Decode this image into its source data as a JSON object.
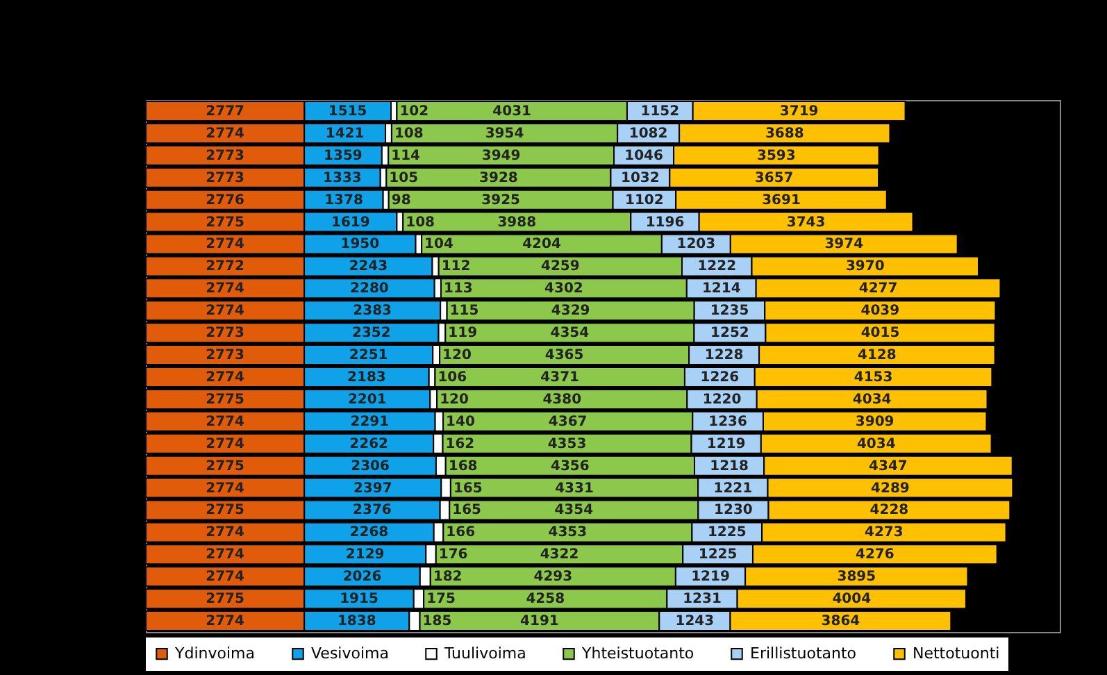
{
  "chart_data": {
    "type": "bar",
    "orientation": "horizontal",
    "stacked": true,
    "data_labels": true,
    "tick_labels": false,
    "legend": "bottom",
    "grid": false,
    "categories": [
      null,
      null,
      null,
      null,
      null,
      null,
      null,
      null,
      null,
      null,
      null,
      null,
      null,
      null,
      null,
      null,
      null,
      null,
      null,
      null,
      null,
      null,
      null,
      null
    ],
    "series": [
      {
        "name": "Ydinvoima",
        "color": "#e05c0a",
        "values": [
          2777,
          2774,
          2773,
          2773,
          2776,
          2775,
          2774,
          2772,
          2774,
          2774,
          2773,
          2773,
          2774,
          2775,
          2774,
          2774,
          2775,
          2774,
          2775,
          2774,
          2774,
          2774,
          2775,
          2774
        ]
      },
      {
        "name": "Vesivoima",
        "color": "#10a2e8",
        "values": [
          1515,
          1421,
          1359,
          1333,
          1378,
          1619,
          1950,
          2243,
          2280,
          2383,
          2352,
          2251,
          2183,
          2201,
          2291,
          2262,
          2306,
          2397,
          2376,
          2268,
          2129,
          2026,
          1915,
          1838
        ]
      },
      {
        "name": "Tuulivoima",
        "color": "#ffffff",
        "values": [
          102,
          108,
          114,
          105,
          98,
          108,
          104,
          112,
          113,
          115,
          119,
          120,
          106,
          120,
          140,
          162,
          168,
          165,
          165,
          166,
          176,
          182,
          175,
          185
        ]
      },
      {
        "name": "Yhteistuotanto",
        "color": "#8cc84b",
        "values": [
          4031,
          3954,
          3949,
          3928,
          3925,
          3988,
          4204,
          4259,
          4302,
          4329,
          4354,
          4365,
          4371,
          4380,
          4367,
          4353,
          4356,
          4331,
          4354,
          4353,
          4322,
          4293,
          4258,
          4191
        ]
      },
      {
        "name": "Erillistuotanto",
        "color": "#a9d0f5",
        "values": [
          1152,
          1082,
          1046,
          1032,
          1102,
          1196,
          1203,
          1222,
          1214,
          1235,
          1252,
          1228,
          1226,
          1220,
          1236,
          1219,
          1218,
          1221,
          1230,
          1225,
          1225,
          1219,
          1231,
          1243
        ]
      },
      {
        "name": "Nettotuonti",
        "color": "#ffc000",
        "values": [
          3719,
          3688,
          3593,
          3657,
          3691,
          3743,
          3974,
          3970,
          4277,
          4039,
          4015,
          4128,
          4153,
          4034,
          3909,
          4034,
          4347,
          4289,
          4228,
          4273,
          4276,
          3895,
          4004,
          3864
        ]
      }
    ]
  }
}
